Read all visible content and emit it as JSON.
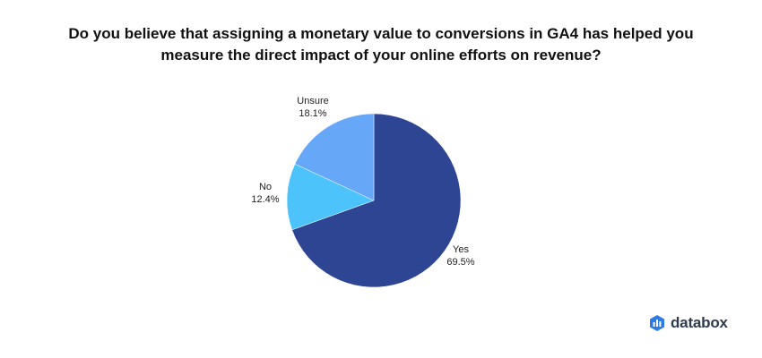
{
  "title_line1": "Do you believe that assigning a monetary value to conversions in GA4 has helped you",
  "title_line2": "measure the direct impact of your online efforts on revenue?",
  "brand": {
    "name": "databox"
  },
  "chart_data": {
    "type": "pie",
    "title": "Do you believe that assigning a monetary value to conversions in GA4 has helped you measure the direct impact of your online efforts on revenue?",
    "slices": [
      {
        "label": "Yes",
        "value": 69.5,
        "value_label": "69.5%",
        "color": "#2e4593"
      },
      {
        "label": "No",
        "value": 12.4,
        "value_label": "12.4%",
        "color": "#4cc3fb"
      },
      {
        "label": "Unsure",
        "value": 18.1,
        "value_label": "18.1%",
        "color": "#66a7f8"
      }
    ],
    "start_angle": "12 o'clock",
    "direction": "clockwise",
    "legend": "none"
  }
}
